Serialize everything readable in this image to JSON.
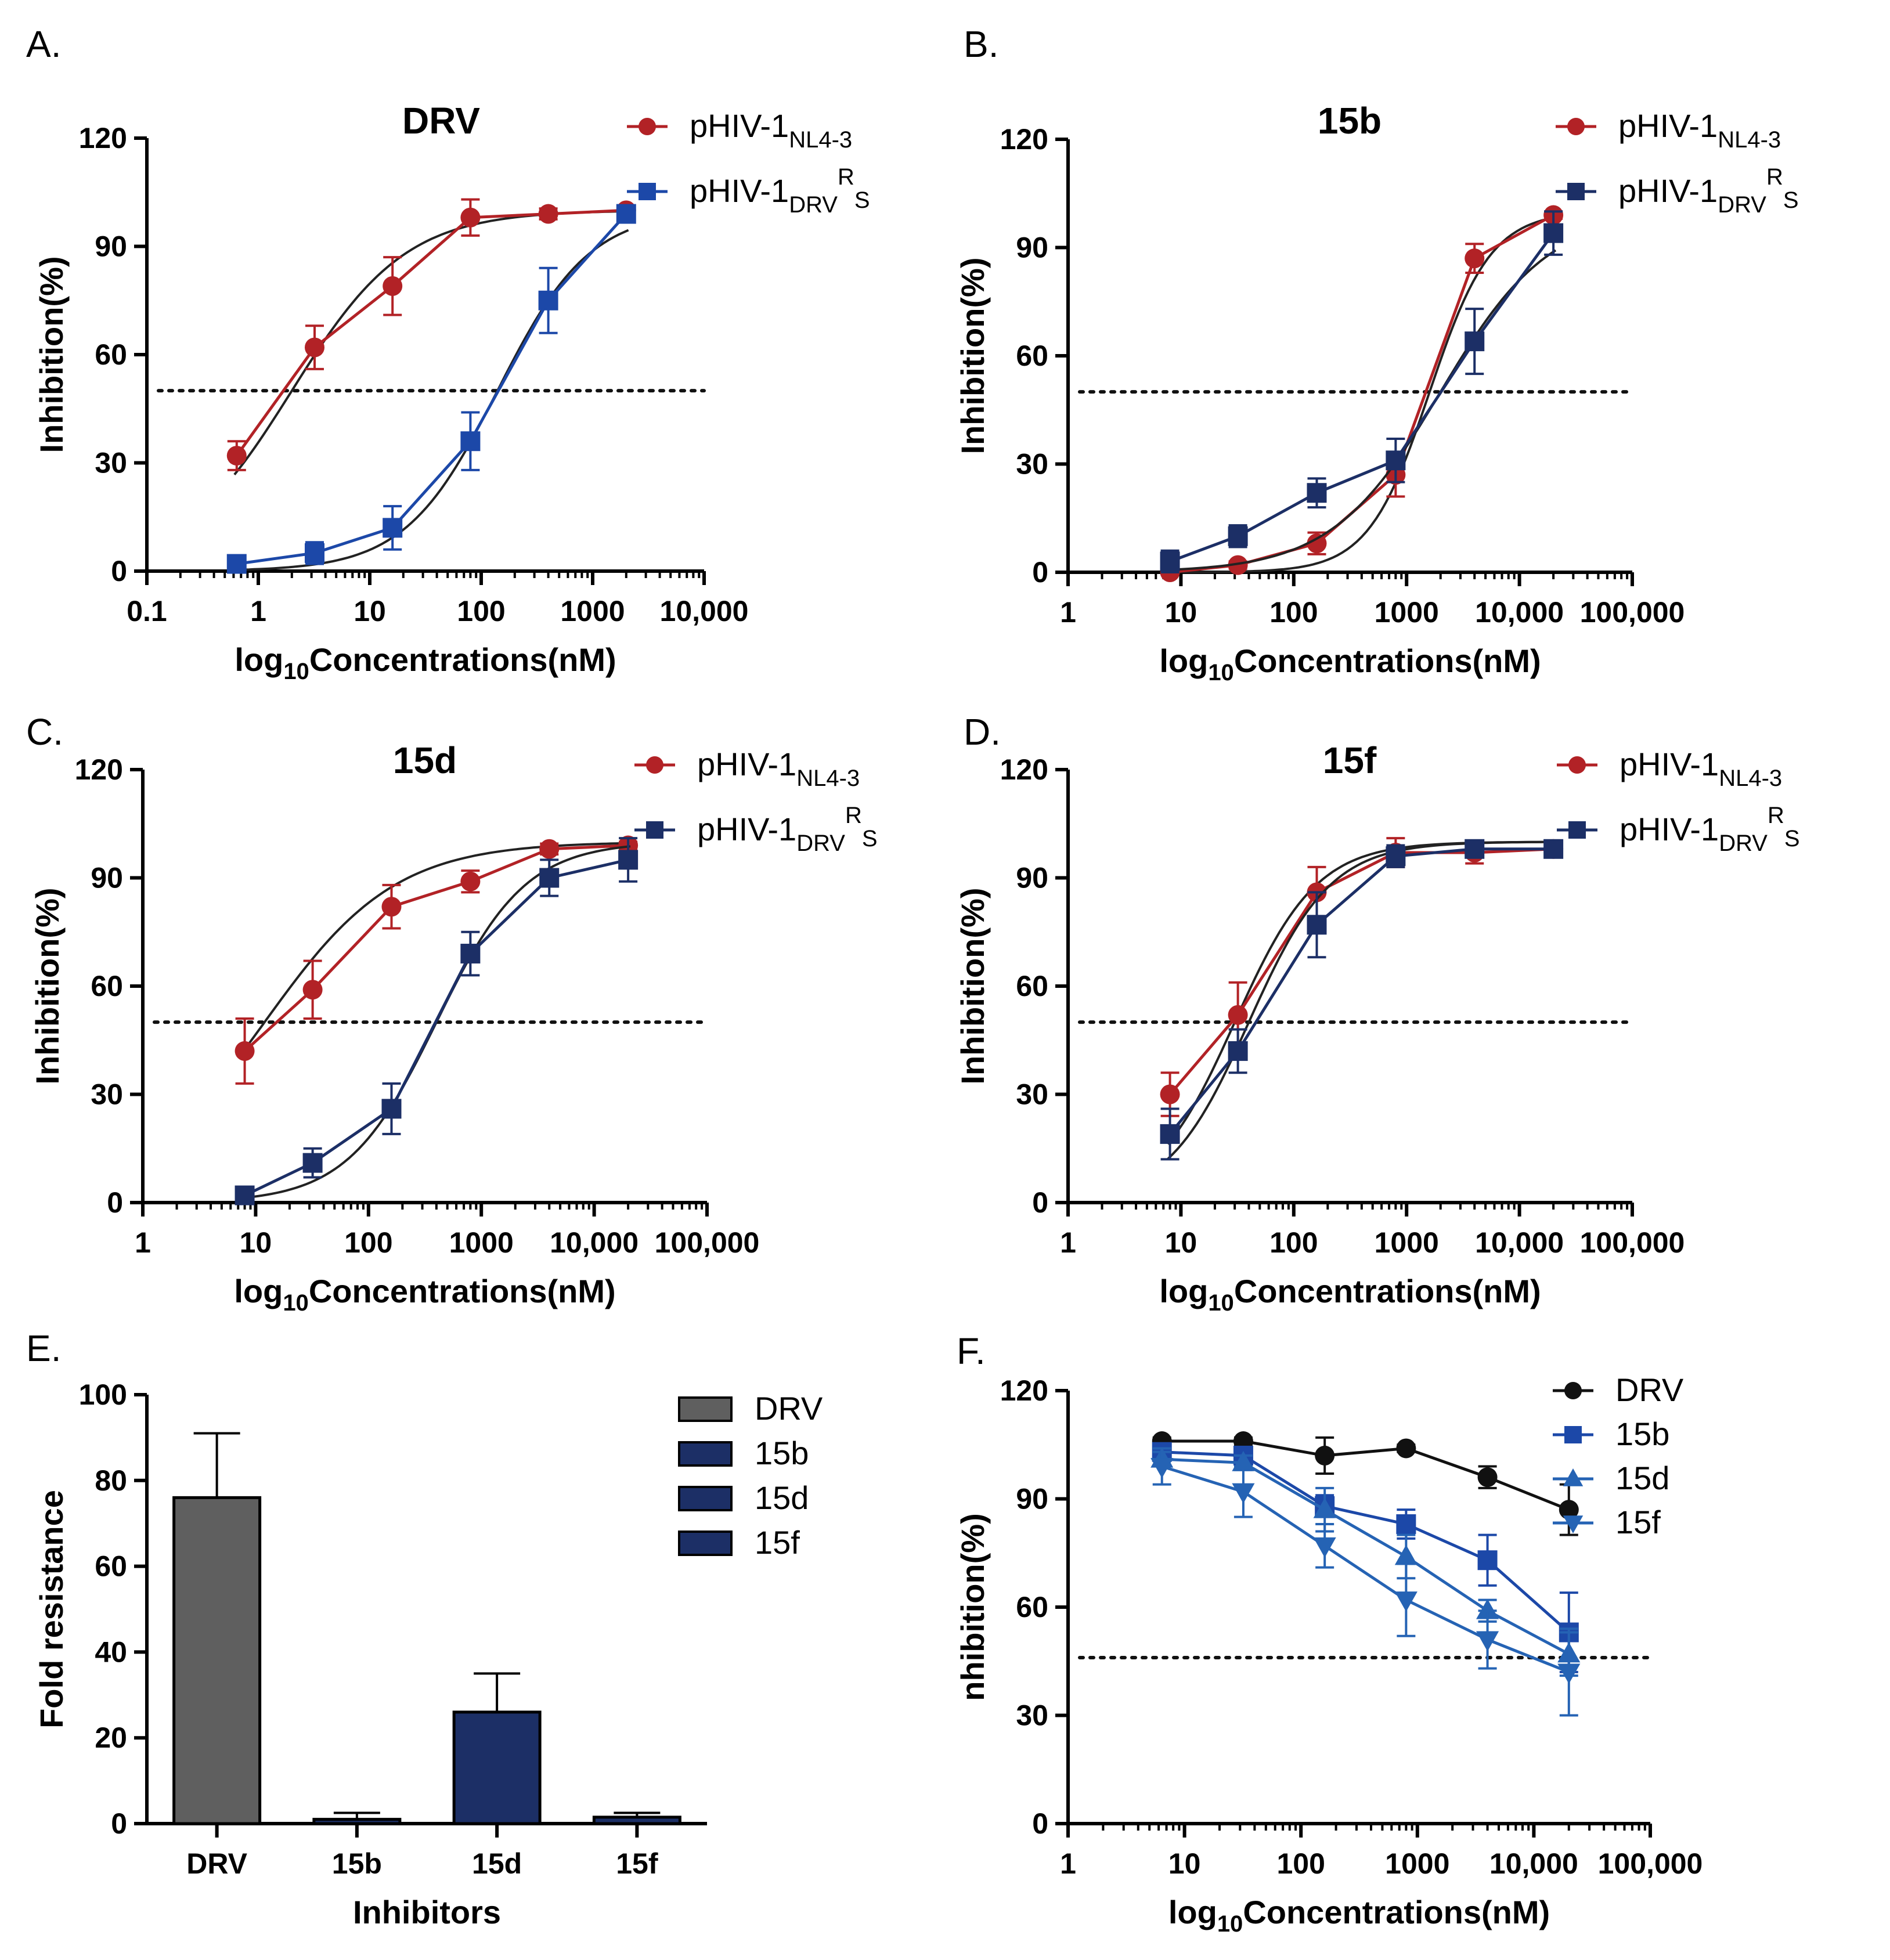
{
  "colors": {
    "nl43": "#b22226",
    "drv_rs_a": "#1c48a8",
    "drv_rs_dark": "#1c2f66",
    "drv_bar": "#5f5f5f",
    "navy_bar": "#1c2f66",
    "drv_line": "#111111",
    "blue_f": "#2563b4",
    "fit": "#222222"
  },
  "chart_data": [
    {
      "id": "A",
      "panel_label": "A.",
      "type": "line",
      "title": "DRV",
      "xlabel": {
        "pre": "log",
        "sub": "10",
        "post": "Concentrations(nM)"
      },
      "ylabel": "Inhibition(%)",
      "xscale": "log",
      "xlim": [
        0.1,
        10000
      ],
      "ylim": [
        0,
        120
      ],
      "xticks": [
        {
          "v": 0.1,
          "t": "0.1"
        },
        {
          "v": 1,
          "t": "1"
        },
        {
          "v": 10,
          "t": "10"
        },
        {
          "v": 100,
          "t": "100"
        },
        {
          "v": 1000,
          "t": "1000"
        },
        {
          "v": 10000,
          "t": "10,000"
        }
      ],
      "yticks": [
        {
          "v": 0,
          "t": "0"
        },
        {
          "v": 30,
          "t": "30"
        },
        {
          "v": 60,
          "t": "60"
        },
        {
          "v": 90,
          "t": "90"
        },
        {
          "v": 120,
          "t": "120"
        }
      ],
      "reference_line": 50,
      "series": [
        {
          "name": "pHIV-1",
          "sub": "NL4-3",
          "sup": "",
          "sub2": "",
          "marker": "circle",
          "color": "#b22226",
          "x": [
            0.64,
            3.2,
            16,
            80,
            400,
            2000
          ],
          "y": [
            32,
            62,
            79,
            98,
            99,
            100
          ],
          "err": [
            4,
            6,
            8,
            5,
            1.5,
            1
          ],
          "fit": {
            "ic50": 2,
            "hill": 0.85
          }
        },
        {
          "name": "pHIV-1",
          "sub": "DRV",
          "sup": "R",
          "sub2": "S",
          "marker": "square",
          "color": "#1c48a8",
          "x": [
            0.64,
            3.2,
            16,
            80,
            400,
            2000
          ],
          "y": [
            2,
            5,
            12,
            36,
            75,
            99
          ],
          "err": [
            1,
            3,
            6,
            8,
            9,
            1
          ],
          "fit": {
            "ic50": 140,
            "hill": 1.05
          }
        }
      ]
    },
    {
      "id": "B",
      "panel_label": "B.",
      "type": "line",
      "title": "15b",
      "xlabel": {
        "pre": "log",
        "sub": "10",
        "post": "Concentrations(nM)"
      },
      "ylabel": "Inhibition(%)",
      "xscale": "log",
      "xlim": [
        1,
        100000
      ],
      "ylim": [
        0,
        120
      ],
      "xticks": [
        {
          "v": 1,
          "t": "1"
        },
        {
          "v": 10,
          "t": "10"
        },
        {
          "v": 100,
          "t": "100"
        },
        {
          "v": 1000,
          "t": "1000"
        },
        {
          "v": 10000,
          "t": "10,000"
        },
        {
          "v": 100000,
          "t": "100,000"
        }
      ],
      "yticks": [
        {
          "v": 0,
          "t": "0"
        },
        {
          "v": 30,
          "t": "30"
        },
        {
          "v": 60,
          "t": "60"
        },
        {
          "v": 90,
          "t": "90"
        },
        {
          "v": 120,
          "t": "120"
        }
      ],
      "reference_line": 50,
      "series": [
        {
          "name": "pHIV-1",
          "sub": "NL4-3",
          "sup": "",
          "sub2": "",
          "marker": "circle",
          "color": "#b22226",
          "x": [
            8,
            32,
            160,
            800,
            4000,
            20000
          ],
          "y": [
            0,
            2,
            8,
            27,
            87,
            99
          ],
          "err": [
            0.5,
            1,
            3,
            6,
            4,
            1
          ],
          "fit": {
            "ic50": 1600,
            "hill": 1.6
          }
        },
        {
          "name": "pHIV-1",
          "sub": "DRV",
          "sup": "R",
          "sub2": "S",
          "marker": "square",
          "color": "#1c2f66",
          "x": [
            8,
            32,
            160,
            800,
            4000,
            20000
          ],
          "y": [
            3,
            10,
            22,
            31,
            64,
            94
          ],
          "err": [
            3,
            3,
            4,
            6,
            9,
            6
          ],
          "fit": {
            "ic50": 2000,
            "hill": 0.9
          }
        }
      ]
    },
    {
      "id": "C",
      "panel_label": "C.",
      "type": "line",
      "title": "15d",
      "xlabel": {
        "pre": "log",
        "sub": "10",
        "post": "Concentrations(nM)"
      },
      "ylabel": "Inhibition(%)",
      "xscale": "log",
      "xlim": [
        1,
        100000
      ],
      "ylim": [
        0,
        120
      ],
      "xticks": [
        {
          "v": 1,
          "t": "1"
        },
        {
          "v": 10,
          "t": "10"
        },
        {
          "v": 100,
          "t": "100"
        },
        {
          "v": 1000,
          "t": "1000"
        },
        {
          "v": 10000,
          "t": "10,000"
        },
        {
          "v": 100000,
          "t": "100,000"
        }
      ],
      "yticks": [
        {
          "v": 0,
          "t": "0"
        },
        {
          "v": 30,
          "t": "30"
        },
        {
          "v": 60,
          "t": "60"
        },
        {
          "v": 90,
          "t": "90"
        },
        {
          "v": 120,
          "t": "120"
        }
      ],
      "reference_line": 50,
      "series": [
        {
          "name": "pHIV-1",
          "sub": "NL4-3",
          "sup": "",
          "sub2": "",
          "marker": "circle",
          "color": "#b22226",
          "x": [
            8,
            32,
            160,
            800,
            4000,
            20000
          ],
          "y": [
            42,
            59,
            82,
            89,
            98,
            99
          ],
          "err": [
            9,
            8,
            6,
            3,
            1.5,
            1
          ],
          "fit": {
            "ic50": 12,
            "hill": 0.75
          }
        },
        {
          "name": "pHIV-1",
          "sub": "DRV",
          "sup": "R",
          "sub2": "S",
          "marker": "square",
          "color": "#1c2f66",
          "x": [
            8,
            32,
            160,
            800,
            4000,
            20000
          ],
          "y": [
            2,
            11,
            26,
            69,
            90,
            95
          ],
          "err": [
            1,
            4,
            7,
            6,
            5,
            6
          ],
          "fit": {
            "ic50": 400,
            "hill": 1.1
          }
        }
      ]
    },
    {
      "id": "D",
      "panel_label": "D.",
      "type": "line",
      "title": "15f",
      "xlabel": {
        "pre": "log",
        "sub": "10",
        "post": "Concentrations(nM)"
      },
      "ylabel": "Inhibition(%)",
      "xscale": "log",
      "xlim": [
        1,
        100000
      ],
      "ylim": [
        0,
        120
      ],
      "xticks": [
        {
          "v": 1,
          "t": "1"
        },
        {
          "v": 10,
          "t": "10"
        },
        {
          "v": 100,
          "t": "100"
        },
        {
          "v": 1000,
          "t": "1000"
        },
        {
          "v": 10000,
          "t": "10,000"
        },
        {
          "v": 100000,
          "t": "100,000"
        }
      ],
      "yticks": [
        {
          "v": 0,
          "t": "0"
        },
        {
          "v": 30,
          "t": "30"
        },
        {
          "v": 60,
          "t": "60"
        },
        {
          "v": 90,
          "t": "90"
        },
        {
          "v": 120,
          "t": "120"
        }
      ],
      "reference_line": 50,
      "series": [
        {
          "name": "pHIV-1",
          "sub": "NL4-3",
          "sup": "",
          "sub2": "",
          "marker": "circle",
          "color": "#b22226",
          "x": [
            8,
            32,
            160,
            800,
            4000,
            20000
          ],
          "y": [
            30,
            52,
            86,
            97,
            97,
            98
          ],
          "err": [
            6,
            9,
            7,
            4,
            3,
            2
          ],
          "fit": {
            "ic50": 30,
            "hill": 1.2
          }
        },
        {
          "name": "pHIV-1",
          "sub": "DRV",
          "sup": "R",
          "sub2": "S",
          "marker": "square",
          "color": "#1c2f66",
          "x": [
            8,
            32,
            160,
            800,
            4000,
            20000
          ],
          "y": [
            19,
            42,
            77,
            96,
            98,
            98
          ],
          "err": [
            7,
            6,
            9,
            3,
            2,
            2
          ],
          "fit": {
            "ic50": 40,
            "hill": 1.2
          }
        }
      ]
    },
    {
      "id": "E",
      "panel_label": "E.",
      "type": "bar",
      "title": "",
      "xlabel": "Inhibitors",
      "ylabel": "Fold resistance",
      "ylim": [
        0,
        100
      ],
      "yticks": [
        {
          "v": 0,
          "t": "0"
        },
        {
          "v": 20,
          "t": "20"
        },
        {
          "v": 40,
          "t": "40"
        },
        {
          "v": 60,
          "t": "60"
        },
        {
          "v": 80,
          "t": "80"
        },
        {
          "v": 100,
          "t": "100"
        }
      ],
      "categories": [
        "DRV",
        "15b",
        "15d",
        "15f"
      ],
      "values": [
        76,
        1,
        26,
        1.5
      ],
      "err": [
        15,
        1.5,
        9,
        1
      ],
      "colors": [
        "#5f5f5f",
        "#1c2f66",
        "#1c2f66",
        "#1c2f66"
      ],
      "legend": [
        "DRV",
        "15b",
        "15d",
        "15f"
      ]
    },
    {
      "id": "F",
      "panel_label": "F.",
      "type": "line",
      "title": "",
      "xlabel": {
        "pre": "log",
        "sub": "10",
        "post": "Concentrations(nM)"
      },
      "ylabel": "nhibition(%)",
      "xscale": "log",
      "xlim": [
        1,
        100000
      ],
      "ylim": [
        0,
        120
      ],
      "xticks": [
        {
          "v": 1,
          "t": "1"
        },
        {
          "v": 10,
          "t": "10"
        },
        {
          "v": 100,
          "t": "100"
        },
        {
          "v": 1000,
          "t": "1000"
        },
        {
          "v": 10000,
          "t": "10,000"
        },
        {
          "v": 100000,
          "t": "100,000"
        }
      ],
      "yticks": [
        {
          "v": 0,
          "t": "0"
        },
        {
          "v": 30,
          "t": "30"
        },
        {
          "v": 60,
          "t": "60"
        },
        {
          "v": 90,
          "t": "90"
        },
        {
          "v": 120,
          "t": "120"
        }
      ],
      "reference_line": 46,
      "series": [
        {
          "name": "DRV",
          "sub": "",
          "sup": "",
          "sub2": "",
          "marker": "circle",
          "color": "#111111",
          "x": [
            6.4,
            32,
            160,
            800,
            4000,
            20000
          ],
          "y": [
            106,
            106,
            102,
            104,
            96,
            87
          ],
          "err": [
            1,
            1,
            5,
            1,
            3,
            7
          ]
        },
        {
          "name": "15b",
          "sub": "",
          "sup": "",
          "sub2": "",
          "marker": "square",
          "color": "#1c48a8",
          "x": [
            6.4,
            32,
            160,
            800,
            4000,
            20000
          ],
          "y": [
            103,
            102,
            88,
            83,
            73,
            53
          ],
          "err": [
            2,
            2,
            3,
            4,
            7,
            11
          ]
        },
        {
          "name": "15d",
          "sub": "",
          "sup": "",
          "sub2": "",
          "marker": "triangle",
          "color": "#2563b4",
          "x": [
            6.4,
            32,
            160,
            800,
            4000,
            20000
          ],
          "y": [
            101,
            100,
            87,
            74,
            59,
            47
          ],
          "err": [
            2,
            2,
            6,
            6,
            3,
            6
          ]
        },
        {
          "name": "15f",
          "sub": "",
          "sup": "",
          "sub2": "",
          "marker": "triangle-down",
          "color": "#2563b4",
          "x": [
            6.4,
            32,
            160,
            800,
            4000,
            20000
          ],
          "y": [
            99,
            92,
            77,
            62,
            51,
            42
          ],
          "err": [
            5,
            7,
            6,
            10,
            8,
            12
          ]
        }
      ]
    }
  ]
}
